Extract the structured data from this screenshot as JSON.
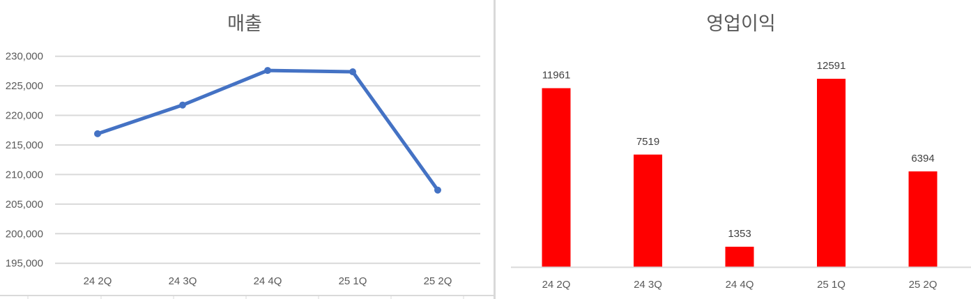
{
  "chart_data": [
    {
      "type": "line",
      "title": "매출",
      "categories": [
        "24 2Q",
        "24 3Q",
        "24 4Q",
        "25 1Q",
        "25 2Q"
      ],
      "values": [
        216900,
        221750,
        227600,
        227370,
        207370
      ],
      "ylim": [
        195000,
        230000
      ],
      "yticks": [
        "195,000",
        "200,000",
        "205,000",
        "210,000",
        "215,000",
        "220,000",
        "225,000",
        "230,000"
      ],
      "grid": true,
      "color": "#4472C4"
    },
    {
      "type": "bar",
      "title": "영업이익",
      "categories": [
        "24 2Q",
        "24 3Q",
        "24 4Q",
        "25 1Q",
        "25 2Q"
      ],
      "values": [
        11961,
        7519,
        1353,
        12591,
        6394
      ],
      "data_labels": [
        "11961",
        "7519",
        "1353",
        "12591",
        "6394"
      ],
      "ylim": [
        0,
        14000
      ],
      "grid": false,
      "color": "#FF0000"
    }
  ]
}
